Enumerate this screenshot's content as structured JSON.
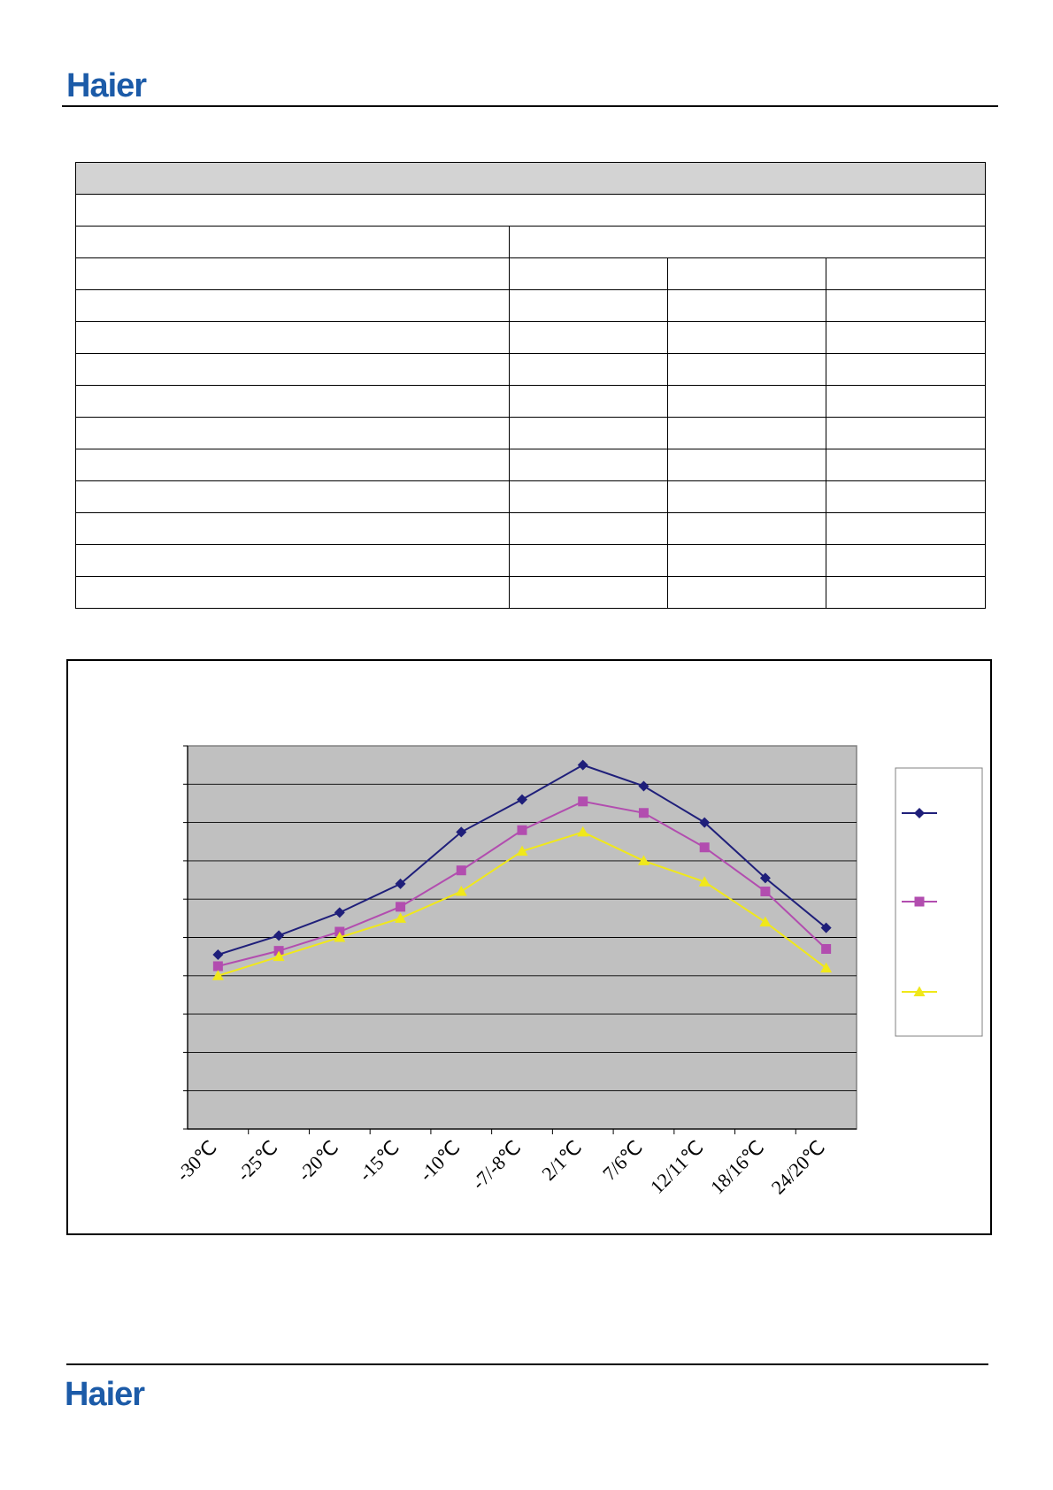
{
  "header": {
    "brand": "Haier",
    "brand_color": "#1c5ba8"
  },
  "footer": {
    "brand": "Haier"
  },
  "table": {
    "header_fill": "#d3d3d3",
    "full_width_rows": 2,
    "split_row": 1,
    "data_rows": 11,
    "data_columns": 4
  },
  "chart_data": {
    "type": "line",
    "title": "",
    "xlabel": "",
    "ylabel": "",
    "categories": [
      "-30℃",
      "-25℃",
      "-20℃",
      "-15℃",
      "-10℃",
      "-7/-8℃",
      "2/1℃",
      "7/6℃",
      "12/11℃",
      "18/16℃",
      "24/20℃"
    ],
    "ylim": [
      0,
      10
    ],
    "y_gridlines": 10,
    "grid": true,
    "plot_background": "#c0c0c0",
    "legend": "right",
    "series": [
      {
        "color": "#1f1f7a",
        "marker": "diamond",
        "values": [
          4.55,
          5.05,
          5.65,
          6.4,
          7.75,
          8.6,
          9.5,
          8.95,
          8.0,
          6.55,
          5.25
        ]
      },
      {
        "color": "#b24daf",
        "marker": "square",
        "values": [
          4.25,
          4.65,
          5.15,
          5.8,
          6.75,
          7.8,
          8.55,
          8.25,
          7.35,
          6.2,
          4.7
        ]
      },
      {
        "color": "#f0e81a",
        "marker": "triangle",
        "values": [
          4.0,
          4.5,
          5.0,
          5.5,
          6.2,
          7.25,
          7.75,
          7.0,
          6.45,
          5.4,
          4.2
        ]
      }
    ]
  }
}
